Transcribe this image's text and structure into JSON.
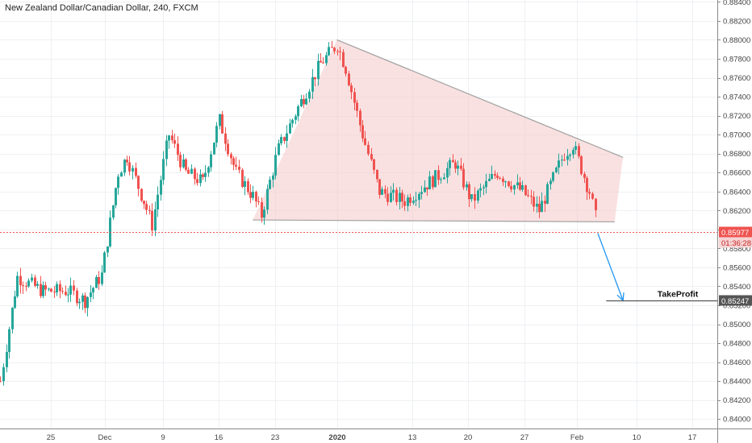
{
  "chart_data": {
    "type": "candlestick",
    "title": "New Zealand Dollar/Canadian Dollar, 240, FXCM",
    "xlabel": "",
    "ylabel": "",
    "ylim": [
      0.839,
      0.8842
    ],
    "y_ticks": [
      "0.88400",
      "0.88200",
      "0.88000",
      "0.87800",
      "0.87600",
      "0.87400",
      "0.87200",
      "0.87000",
      "0.86800",
      "0.86600",
      "0.86400",
      "0.86200",
      "0.86000",
      "0.85800",
      "0.85600",
      "0.85400",
      "0.85200",
      "0.85000",
      "0.84800",
      "0.84600",
      "0.84400",
      "0.84200",
      "0.84000"
    ],
    "x_ticks": [
      "25",
      "Dec",
      "9",
      "16",
      "23",
      "2020",
      "13",
      "20",
      "27",
      "Feb",
      "10",
      "17"
    ],
    "x_ticks_bold": [
      "2020"
    ],
    "grid": true,
    "colors": {
      "up": "#26a69a",
      "down": "#ef5350",
      "triangle_fill": "#f6c9c9",
      "triangle_edge": "#a0a0a0",
      "arrow": "#2196f3",
      "tp_line": "#555555",
      "price_line": "#ef5350"
    },
    "path_points": [
      [
        "Nov 19",
        0.844
      ],
      [
        "Nov 21",
        0.855
      ],
      [
        "Nov 24",
        0.8535
      ],
      [
        "Nov 27",
        0.8535
      ],
      [
        "Nov 29",
        0.8525
      ],
      [
        "Dec 1",
        0.8552
      ],
      [
        "Dec 3",
        0.866
      ],
      [
        "Dec 4",
        0.8677
      ],
      [
        "Dec 6",
        0.863
      ],
      [
        "Dec 7",
        0.8605
      ],
      [
        "Dec 9",
        0.87
      ],
      [
        "Dec 11",
        0.866
      ],
      [
        "Dec 13",
        0.865
      ],
      [
        "Dec 15",
        0.8715
      ],
      [
        "Dec 17",
        0.866
      ],
      [
        "Dec 19",
        0.8635
      ],
      [
        "Dec 20",
        0.8615
      ],
      [
        "Dec 22",
        0.8685
      ],
      [
        "Dec 25",
        0.874
      ],
      [
        "Dec 27",
        0.8775
      ],
      [
        "Dec 29",
        0.8795
      ],
      [
        "Dec 30",
        0.877
      ],
      [
        "Jan 1",
        0.87
      ],
      [
        "Jan 3",
        0.864
      ],
      [
        "Jan 6",
        0.863
      ],
      [
        "Jan 9",
        0.865
      ],
      [
        "Jan 12",
        0.867
      ],
      [
        "Jan 14",
        0.863
      ],
      [
        "Jan 17",
        0.866
      ],
      [
        "Jan 20",
        0.864
      ],
      [
        "Jan 22",
        0.862
      ],
      [
        "Jan 23",
        0.864
      ],
      [
        "Jan 25",
        0.868
      ],
      [
        "Jan 26",
        0.869
      ],
      [
        "Jan 28",
        0.864
      ],
      [
        "Jan 29",
        0.86
      ]
    ],
    "triangle": {
      "top": [
        "Dec 29",
        0.88
      ],
      "right_top": [
        "Feb 1",
        0.8676
      ],
      "right_bottom": [
        "Jan 31",
        0.8608
      ],
      "left_bottom": [
        "Dec 19",
        0.861
      ]
    },
    "last_price": {
      "value": 0.85977,
      "label": "0.85977",
      "countdown": "01:36:28"
    },
    "take_profit": {
      "value": 0.85247,
      "label": "0.85247",
      "text": "TakeProfit",
      "x_start": "Jan 30",
      "x_end": "Feb 21"
    },
    "arrow": {
      "from": [
        "Jan 29",
        0.8596
      ],
      "to": [
        "Feb 1",
        0.8525
      ]
    }
  }
}
